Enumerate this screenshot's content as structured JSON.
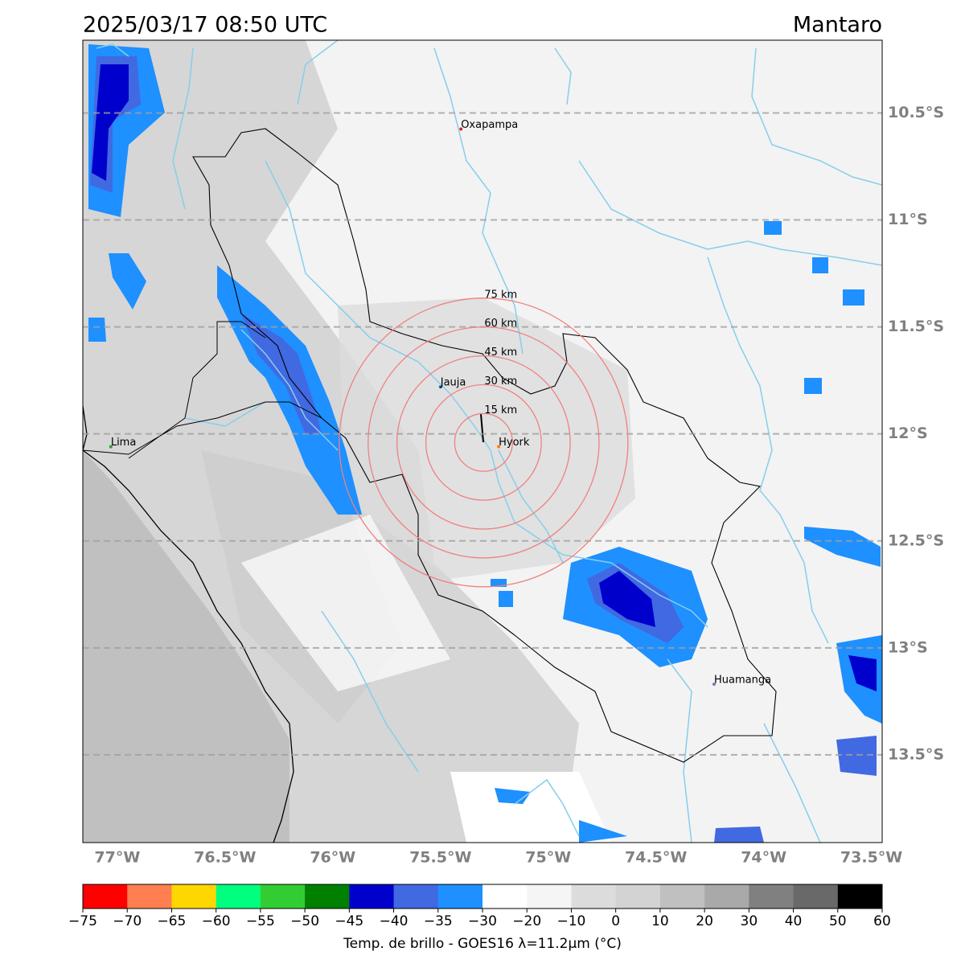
{
  "header": {
    "title": "2025/03/17 08:50 UTC",
    "region": "Mantaro"
  },
  "map": {
    "lonlim": [
      -77.16,
      -73.45
    ],
    "latlim": [
      -10.16,
      -13.91
    ],
    "lat_ticks": [
      {
        "value": -10.5,
        "label": "10.5°S"
      },
      {
        "value": -11,
        "label": "11°S"
      },
      {
        "value": -11.5,
        "label": "11.5°S"
      },
      {
        "value": -12,
        "label": "12°S"
      },
      {
        "value": -12.5,
        "label": "12.5°S"
      },
      {
        "value": -13,
        "label": "13°S"
      },
      {
        "value": -13.5,
        "label": "13.5°S"
      }
    ],
    "lon_ticks": [
      {
        "value": -77,
        "label": "77°W"
      },
      {
        "value": -76.5,
        "label": "76.5°W"
      },
      {
        "value": -76,
        "label": "76°W"
      },
      {
        "value": -75.5,
        "label": "75.5°W"
      },
      {
        "value": -75,
        "label": "75°W"
      },
      {
        "value": -74.5,
        "label": "74.5°W"
      },
      {
        "value": -74,
        "label": "74°W"
      },
      {
        "value": -73.5,
        "label": "73.5°W"
      }
    ],
    "cities": [
      {
        "name": "Oxapampa",
        "lon": -75.405,
        "lat": -10.575,
        "color": "#d62728"
      },
      {
        "name": "Jauja",
        "lon": -75.5,
        "lat": -11.78,
        "color": "#1f77b4"
      },
      {
        "name": "Hyork",
        "lon": -75.23,
        "lat": -12.06,
        "color": "#ff7f0e"
      },
      {
        "name": "Huamanga",
        "lon": -74.23,
        "lat": -13.17,
        "color": "#9467bd"
      },
      {
        "name": "Lima",
        "lon": -77.03,
        "lat": -12.06,
        "color": "#2ca02c"
      }
    ],
    "rings": {
      "center_lon": -75.3,
      "center_lat": -12.04,
      "color": "#f08080",
      "radii_km": [
        {
          "value": 15,
          "label": "15 km"
        },
        {
          "value": 30,
          "label": "30 km"
        },
        {
          "value": 45,
          "label": "45 km"
        },
        {
          "value": 60,
          "label": "60 km"
        },
        {
          "value": 75,
          "label": "75 km"
        }
      ]
    }
  },
  "colorbar": {
    "label": "Temp. de brillo - GOES16 λ=11.2μm (°C)",
    "ticks": [
      {
        "value": -75,
        "label": "−75"
      },
      {
        "value": -70,
        "label": "−70"
      },
      {
        "value": -65,
        "label": "−65"
      },
      {
        "value": -60,
        "label": "−60"
      },
      {
        "value": -55,
        "label": "−55"
      },
      {
        "value": -50,
        "label": "−50"
      },
      {
        "value": -45,
        "label": "−45"
      },
      {
        "value": -40,
        "label": "−40"
      },
      {
        "value": -35,
        "label": "−35"
      },
      {
        "value": -30,
        "label": "−30"
      },
      {
        "value": -20,
        "label": "−20"
      },
      {
        "value": -10,
        "label": "−10"
      },
      0,
      10,
      20,
      30,
      40,
      50,
      60
    ],
    "colors": [
      "#ff0000",
      "#ff7f50",
      "#ffd700",
      "#00ff7f",
      "#32cd32",
      "#008000",
      "#0000cd",
      "#4169e1",
      "#1e90ff",
      "#ffffff",
      "#f5f5f5",
      "#dcdcdc",
      "#d3d3d3",
      "#c0c0c0",
      "#a9a9a9",
      "#808080",
      "#696969",
      "#000000"
    ]
  }
}
